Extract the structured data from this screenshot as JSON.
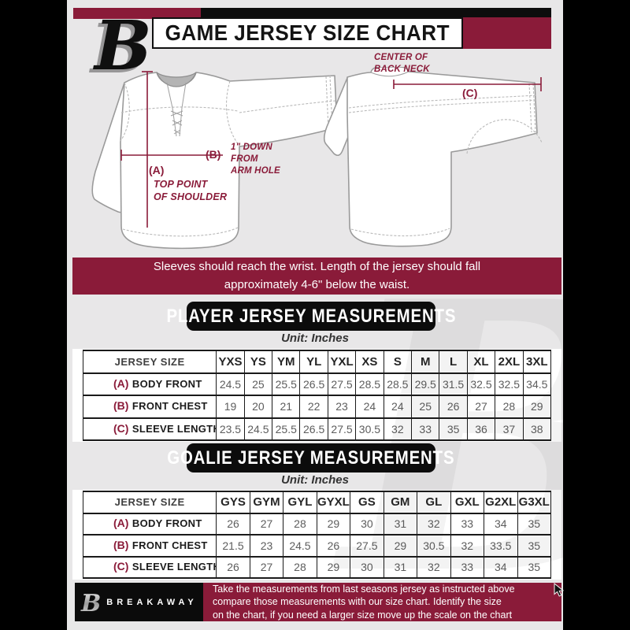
{
  "colors": {
    "maroon": "#8a1b39",
    "ink": "#0d0d0d",
    "background": "#e8e7e8"
  },
  "header": {
    "title": "GAME JERSEY SIZE CHART"
  },
  "diagram": {
    "front": {
      "marker_a": "(A)",
      "marker_b": "(B)",
      "note_a": "TOP POINT\nOF SHOULDER",
      "note_b": "1\" DOWN\nFROM\nARM HOLE"
    },
    "back": {
      "marker_c": "(C)",
      "note_c": "CENTER OF\nBACK NECK"
    }
  },
  "notice": {
    "text": "Sleeves should reach the wrist. Length of the jersey should fall\napproximately 4-6\" below the waist."
  },
  "player_table": {
    "title": "PLAYER JERSEY MEASUREMENTS",
    "unit": "Unit: Inches",
    "size_header": "JERSEY SIZE",
    "sizes": [
      "YXS",
      "YS",
      "YM",
      "YL",
      "YXL",
      "XS",
      "S",
      "M",
      "L",
      "XL",
      "2XL",
      "3XL"
    ],
    "rows": [
      {
        "key": "(A)",
        "label": "BODY FRONT",
        "values": [
          "24.5",
          "25",
          "25.5",
          "26.5",
          "27.5",
          "28.5",
          "28.5",
          "29.5",
          "31.5",
          "32.5",
          "32.5",
          "34.5"
        ]
      },
      {
        "key": "(B)",
        "label": "FRONT CHEST",
        "values": [
          "19",
          "20",
          "21",
          "22",
          "23",
          "24",
          "24",
          "25",
          "26",
          "27",
          "28",
          "29"
        ]
      },
      {
        "key": "(C)",
        "label": "SLEEVE LENGTH",
        "values": [
          "23.5",
          "24.5",
          "25.5",
          "26.5",
          "27.5",
          "30.5",
          "32",
          "33",
          "35",
          "36",
          "37",
          "38"
        ]
      }
    ]
  },
  "goalie_table": {
    "title": "GOALIE JERSEY MEASUREMENTS",
    "unit": "Unit: Inches",
    "size_header": "JERSEY SIZE",
    "sizes": [
      "GYS",
      "GYM",
      "GYL",
      "GYXL",
      "GS",
      "GM",
      "GL",
      "GXL",
      "G2XL",
      "G3XL"
    ],
    "rows": [
      {
        "key": "(A)",
        "label": "BODY FRONT",
        "values": [
          "26",
          "27",
          "28",
          "29",
          "30",
          "31",
          "32",
          "33",
          "34",
          "35"
        ]
      },
      {
        "key": "(B)",
        "label": "FRONT CHEST",
        "values": [
          "21.5",
          "23",
          "24.5",
          "26",
          "27.5",
          "29",
          "30.5",
          "32",
          "33.5",
          "35"
        ]
      },
      {
        "key": "(C)",
        "label": "SLEEVE LENGTH",
        "values": [
          "26",
          "27",
          "28",
          "29",
          "30",
          "31",
          "32",
          "33",
          "34",
          "35"
        ]
      }
    ]
  },
  "footer": {
    "brand": "BREAKAWAY",
    "text": "Take the measurements from last seasons jersey as instructed above\ncompare those measurements  with our size chart. Identify the size\non the chart, if you need a larger size move up the scale on the chart"
  },
  "watermark": {
    "char": "B"
  }
}
